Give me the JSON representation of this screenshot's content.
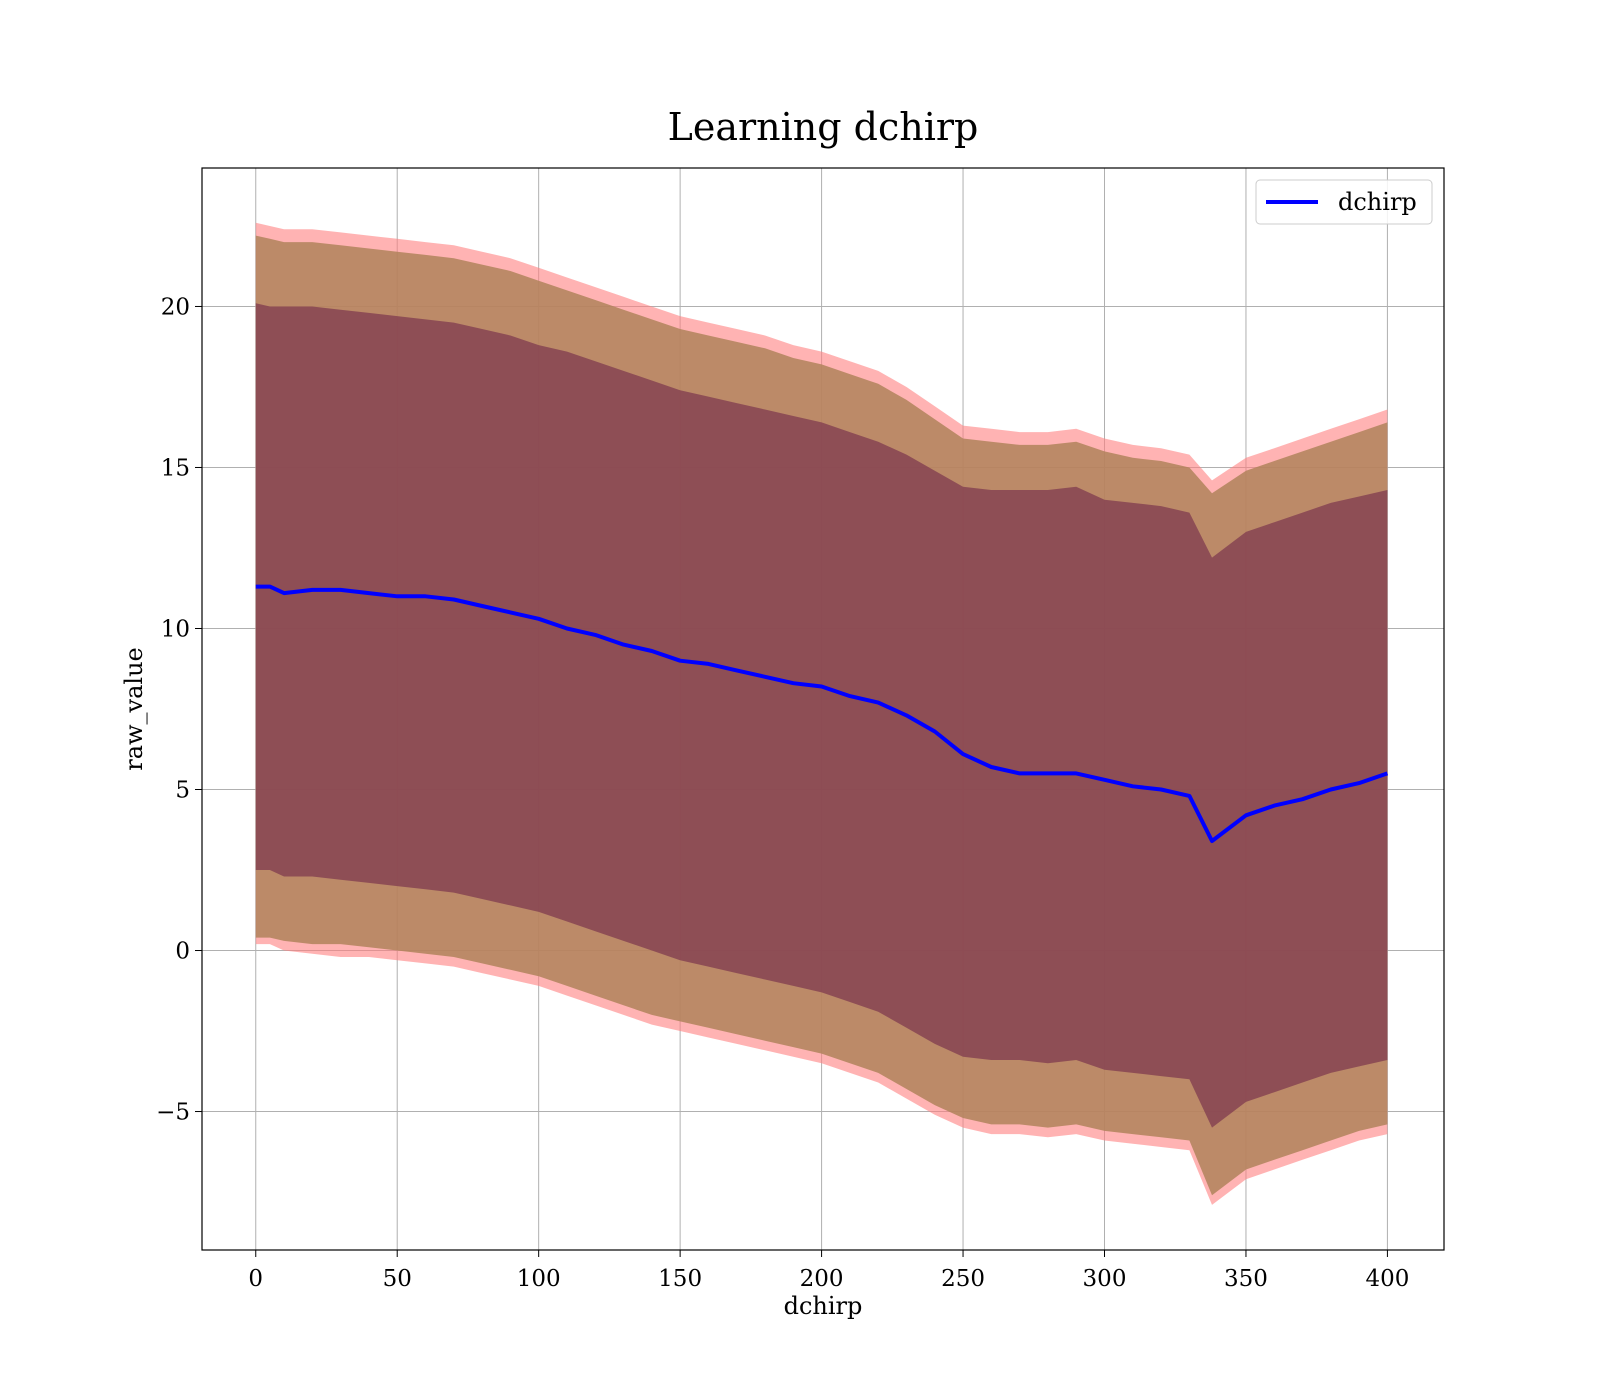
{
  "chart_data": {
    "type": "line",
    "title": "Learning dchirp",
    "xlabel": "dchirp",
    "ylabel": "raw_value",
    "xlim": [
      -19,
      420
    ],
    "ylim": [
      -9.3,
      24.3
    ],
    "xticks": [
      0,
      50,
      100,
      150,
      200,
      250,
      300,
      350,
      400
    ],
    "xtick_labels": [
      "0",
      "50",
      "100",
      "150",
      "200",
      "250",
      "300",
      "350",
      "400"
    ],
    "yticks": [
      -5,
      0,
      5,
      10,
      15,
      20
    ],
    "ytick_labels": [
      "−5",
      "0",
      "5",
      "10",
      "15",
      "20"
    ],
    "grid": true,
    "legend": {
      "position": "top-right",
      "entries": [
        {
          "label": "dchirp",
          "color": "#0000ff"
        }
      ]
    },
    "colors": {
      "line": "#0000ff",
      "band_outer": "#ff8080",
      "band_middle": "#b0825a",
      "band_inner": "#7f3a4f"
    },
    "x": [
      0,
      5,
      10,
      20,
      30,
      40,
      50,
      60,
      70,
      80,
      90,
      100,
      110,
      120,
      130,
      140,
      150,
      160,
      170,
      180,
      190,
      200,
      210,
      220,
      230,
      240,
      250,
      260,
      270,
      280,
      290,
      300,
      310,
      320,
      330,
      338,
      350,
      360,
      370,
      380,
      390,
      400
    ],
    "series": [
      {
        "name": "dchirp",
        "values": [
          11.3,
          11.3,
          11.1,
          11.2,
          11.2,
          11.1,
          11.0,
          11.0,
          10.9,
          10.7,
          10.5,
          10.3,
          10.0,
          9.8,
          9.5,
          9.3,
          9.0,
          8.9,
          8.7,
          8.5,
          8.3,
          8.2,
          7.9,
          7.7,
          7.3,
          6.8,
          6.1,
          5.7,
          5.5,
          5.5,
          5.5,
          5.3,
          5.1,
          5.0,
          4.8,
          3.4,
          4.2,
          4.5,
          4.7,
          5.0,
          5.2,
          5.5
        ]
      }
    ],
    "bands": [
      {
        "level": "outer",
        "upper": [
          22.6,
          22.5,
          22.4,
          22.4,
          22.3,
          22.2,
          22.1,
          22.0,
          21.9,
          21.7,
          21.5,
          21.2,
          20.9,
          20.6,
          20.3,
          20.0,
          19.7,
          19.5,
          19.3,
          19.1,
          18.8,
          18.6,
          18.3,
          18.0,
          17.5,
          16.9,
          16.3,
          16.2,
          16.1,
          16.1,
          16.2,
          15.9,
          15.7,
          15.6,
          15.4,
          14.6,
          15.3,
          15.6,
          15.9,
          16.2,
          16.5,
          16.8
        ],
        "lower": [
          0.2,
          0.2,
          0.0,
          -0.1,
          -0.2,
          -0.2,
          -0.3,
          -0.4,
          -0.5,
          -0.7,
          -0.9,
          -1.1,
          -1.4,
          -1.7,
          -2.0,
          -2.3,
          -2.5,
          -2.7,
          -2.9,
          -3.1,
          -3.3,
          -3.5,
          -3.8,
          -4.1,
          -4.6,
          -5.1,
          -5.5,
          -5.7,
          -5.7,
          -5.8,
          -5.7,
          -5.9,
          -6.0,
          -6.1,
          -6.2,
          -7.9,
          -7.1,
          -6.8,
          -6.5,
          -6.2,
          -5.9,
          -5.7
        ]
      },
      {
        "level": "middle",
        "upper": [
          22.2,
          22.1,
          22.0,
          22.0,
          21.9,
          21.8,
          21.7,
          21.6,
          21.5,
          21.3,
          21.1,
          20.8,
          20.5,
          20.2,
          19.9,
          19.6,
          19.3,
          19.1,
          18.9,
          18.7,
          18.4,
          18.2,
          17.9,
          17.6,
          17.1,
          16.5,
          15.9,
          15.8,
          15.7,
          15.7,
          15.8,
          15.5,
          15.3,
          15.2,
          15.0,
          14.2,
          14.9,
          15.2,
          15.5,
          15.8,
          16.1,
          16.4
        ],
        "lower": [
          0.4,
          0.4,
          0.3,
          0.2,
          0.2,
          0.1,
          0.0,
          -0.1,
          -0.2,
          -0.4,
          -0.6,
          -0.8,
          -1.1,
          -1.4,
          -1.7,
          -2.0,
          -2.2,
          -2.4,
          -2.6,
          -2.8,
          -3.0,
          -3.2,
          -3.5,
          -3.8,
          -4.3,
          -4.8,
          -5.2,
          -5.4,
          -5.4,
          -5.5,
          -5.4,
          -5.6,
          -5.7,
          -5.8,
          -5.9,
          -7.6,
          -6.8,
          -6.5,
          -6.2,
          -5.9,
          -5.6,
          -5.4
        ]
      },
      {
        "level": "inner",
        "upper": [
          20.1,
          20.0,
          20.0,
          20.0,
          19.9,
          19.8,
          19.7,
          19.6,
          19.5,
          19.3,
          19.1,
          18.8,
          18.6,
          18.3,
          18.0,
          17.7,
          17.4,
          17.2,
          17.0,
          16.8,
          16.6,
          16.4,
          16.1,
          15.8,
          15.4,
          14.9,
          14.4,
          14.3,
          14.3,
          14.3,
          14.4,
          14.0,
          13.9,
          13.8,
          13.6,
          12.2,
          13.0,
          13.3,
          13.6,
          13.9,
          14.1,
          14.3
        ],
        "lower": [
          2.5,
          2.5,
          2.3,
          2.3,
          2.2,
          2.1,
          2.0,
          1.9,
          1.8,
          1.6,
          1.4,
          1.2,
          0.9,
          0.6,
          0.3,
          0.0,
          -0.3,
          -0.5,
          -0.7,
          -0.9,
          -1.1,
          -1.3,
          -1.6,
          -1.9,
          -2.4,
          -2.9,
          -3.3,
          -3.4,
          -3.4,
          -3.5,
          -3.4,
          -3.7,
          -3.8,
          -3.9,
          -4.0,
          -5.5,
          -4.7,
          -4.4,
          -4.1,
          -3.8,
          -3.6,
          -3.4
        ]
      }
    ]
  }
}
